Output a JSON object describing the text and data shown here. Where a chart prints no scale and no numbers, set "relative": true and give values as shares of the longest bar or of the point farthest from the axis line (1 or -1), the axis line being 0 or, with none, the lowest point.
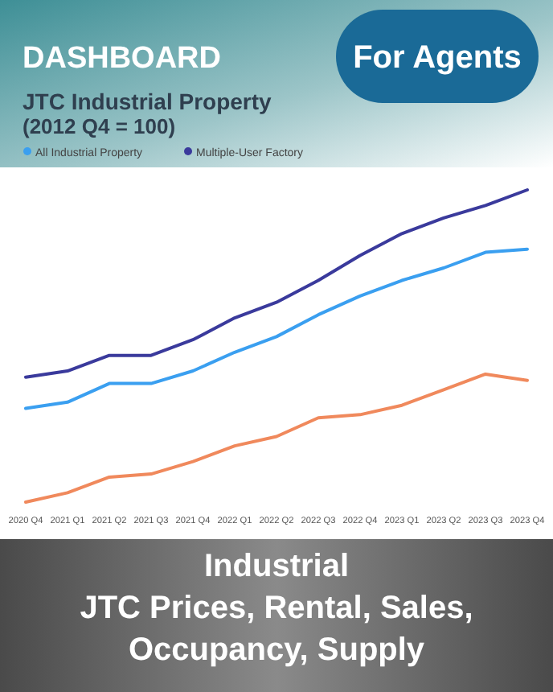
{
  "chart_data": {
    "type": "line",
    "title": "JTC Industrial Property",
    "subtitle": "(2012 Q4 = 100)",
    "categories": [
      "2020 Q4",
      "2021 Q1",
      "2021 Q2",
      "2021 Q3",
      "2021 Q4",
      "2022 Q1",
      "2022 Q2",
      "2022 Q3",
      "2022 Q4",
      "2023 Q1",
      "2023 Q2",
      "2023 Q3",
      "2023 Q4"
    ],
    "relative": true,
    "legend": "top left",
    "line_style": "solid",
    "marker": "none",
    "series": [
      {
        "name": "All Industrial Property",
        "color": "#3a9ff0",
        "values": [
          0.3,
          0.32,
          0.38,
          0.38,
          0.42,
          0.48,
          0.53,
          0.6,
          0.66,
          0.71,
          0.75,
          0.8,
          0.81
        ]
      },
      {
        "name": "Multiple-User Factory",
        "color": "#3a3a9c",
        "values": [
          0.4,
          0.42,
          0.47,
          0.47,
          0.52,
          0.59,
          0.64,
          0.71,
          0.79,
          0.86,
          0.91,
          0.95,
          1.0
        ]
      },
      {
        "color": "#f0895c",
        "values": [
          0,
          0.03,
          0.08,
          0.09,
          0.13,
          0.18,
          0.21,
          0.27,
          0.28,
          0.31,
          0.36,
          0.41,
          0.39
        ]
      }
    ],
    "annotations": [
      "DASHBOARD",
      "For Agents",
      "Industrial",
      "JTC Prices, Rental, Sales,",
      "Occupancy, Supply"
    ]
  }
}
